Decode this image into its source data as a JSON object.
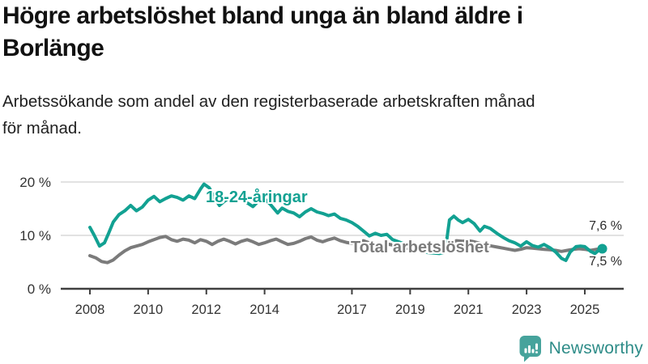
{
  "header": {
    "title_line1": "Högre arbetslöshet bland unga än bland äldre i",
    "title_line2": "Borlänge",
    "subtitle_line1": "Arbetssökande som andel av den registerbaserade arbetskraften månad",
    "subtitle_line2": "för månad."
  },
  "colors": {
    "accent_teal": "#12a192",
    "line_gray": "#7b7b7b",
    "grid": "#d8d8d8",
    "axis": "#3f3f3f",
    "tick_text": "#333333",
    "brand_teal": "#2e8c88",
    "logo_bg": "#46a39c"
  },
  "chart_data": {
    "type": "line",
    "title": "Högre arbetslöshet bland unga än bland äldre i Borlänge",
    "subtitle": "Arbetssökande som andel av den registerbaserade arbetskraften månad för månad.",
    "xlabel": "",
    "ylabel": "",
    "ylim": [
      0,
      21.5
    ],
    "xlim": [
      2007.9,
      2025.9
    ],
    "grid": "horizontal",
    "legend_position": "inline-labels",
    "y_ticks": [
      {
        "value": 0,
        "label": "0 %"
      },
      {
        "value": 10,
        "label": "10 %"
      },
      {
        "value": 20,
        "label": "20 %"
      }
    ],
    "x_ticks": [
      {
        "value": 2008,
        "label": "2008"
      },
      {
        "value": 2010,
        "label": "2010"
      },
      {
        "value": 2012,
        "label": "2012"
      },
      {
        "value": 2014,
        "label": "2014"
      },
      {
        "value": 2017,
        "label": "2017"
      },
      {
        "value": 2019,
        "label": "2019"
      },
      {
        "value": 2021,
        "label": "2021"
      },
      {
        "value": 2023,
        "label": "2023"
      },
      {
        "value": 2025,
        "label": "2025"
      }
    ],
    "end_labels": {
      "total": "7,6 %",
      "youth": "7,5 %"
    },
    "end_values": {
      "total": 7.6,
      "youth": 7.5
    },
    "series": [
      {
        "name": "18-24-åringar",
        "color": "#12a192",
        "points": [
          [
            2008.0,
            11.5
          ],
          [
            2008.15,
            10.0
          ],
          [
            2008.33,
            8.0
          ],
          [
            2008.5,
            8.6
          ],
          [
            2008.65,
            10.5
          ],
          [
            2008.8,
            12.5
          ],
          [
            2009.0,
            13.9
          ],
          [
            2009.2,
            14.6
          ],
          [
            2009.4,
            15.6
          ],
          [
            2009.6,
            14.6
          ],
          [
            2009.8,
            15.3
          ],
          [
            2010.0,
            16.6
          ],
          [
            2010.2,
            17.3
          ],
          [
            2010.4,
            16.3
          ],
          [
            2010.6,
            16.9
          ],
          [
            2010.8,
            17.4
          ],
          [
            2011.0,
            17.1
          ],
          [
            2011.2,
            16.6
          ],
          [
            2011.4,
            17.4
          ],
          [
            2011.6,
            16.9
          ],
          [
            2011.8,
            18.7
          ],
          [
            2011.92,
            19.6
          ],
          [
            2012.1,
            18.9
          ],
          [
            2012.3,
            16.9
          ],
          [
            2012.45,
            15.6
          ],
          [
            2012.6,
            16.3
          ],
          [
            2012.8,
            17.1
          ],
          [
            2013.0,
            16.3
          ],
          [
            2013.2,
            17.2
          ],
          [
            2013.4,
            16.1
          ],
          [
            2013.6,
            15.4
          ],
          [
            2013.8,
            16.5
          ],
          [
            2014.0,
            16.9
          ],
          [
            2014.2,
            15.8
          ],
          [
            2014.45,
            14.2
          ],
          [
            2014.6,
            15.1
          ],
          [
            2014.8,
            14.5
          ],
          [
            2015.0,
            14.2
          ],
          [
            2015.2,
            13.5
          ],
          [
            2015.4,
            14.4
          ],
          [
            2015.6,
            15.0
          ],
          [
            2015.8,
            14.4
          ],
          [
            2016.0,
            14.1
          ],
          [
            2016.2,
            13.7
          ],
          [
            2016.4,
            14.0
          ],
          [
            2016.6,
            13.2
          ],
          [
            2016.8,
            12.9
          ],
          [
            2017.0,
            12.4
          ],
          [
            2017.2,
            11.7
          ],
          [
            2017.4,
            10.8
          ],
          [
            2017.6,
            9.9
          ],
          [
            2017.8,
            10.4
          ],
          [
            2018.0,
            10.0
          ],
          [
            2018.2,
            10.2
          ],
          [
            2018.4,
            9.2
          ],
          [
            2018.6,
            8.8
          ],
          [
            2018.8,
            8.4
          ],
          [
            2019.0,
            7.9
          ],
          [
            2019.2,
            7.4
          ],
          [
            2019.4,
            7.0
          ],
          [
            2019.6,
            6.8
          ],
          [
            2019.8,
            6.7
          ],
          [
            2020.0,
            6.6
          ],
          [
            2020.2,
            6.9
          ],
          [
            2020.35,
            12.9
          ],
          [
            2020.5,
            13.6
          ],
          [
            2020.65,
            12.9
          ],
          [
            2020.8,
            12.4
          ],
          [
            2021.0,
            13.0
          ],
          [
            2021.2,
            12.2
          ],
          [
            2021.4,
            10.8
          ],
          [
            2021.55,
            11.7
          ],
          [
            2021.75,
            11.3
          ],
          [
            2022.0,
            10.3
          ],
          [
            2022.2,
            9.6
          ],
          [
            2022.4,
            9.0
          ],
          [
            2022.6,
            8.6
          ],
          [
            2022.8,
            8.0
          ],
          [
            2023.0,
            8.8
          ],
          [
            2023.2,
            8.1
          ],
          [
            2023.4,
            7.8
          ],
          [
            2023.6,
            8.3
          ],
          [
            2023.8,
            7.7
          ],
          [
            2024.0,
            6.9
          ],
          [
            2024.2,
            5.7
          ],
          [
            2024.35,
            5.3
          ],
          [
            2024.5,
            6.9
          ],
          [
            2024.7,
            7.9
          ],
          [
            2024.85,
            8.0
          ],
          [
            2025.0,
            7.9
          ],
          [
            2025.2,
            7.0
          ],
          [
            2025.35,
            6.6
          ],
          [
            2025.5,
            7.3
          ],
          [
            2025.6,
            7.5
          ]
        ]
      },
      {
        "name": "Total arbetslöshet",
        "color": "#7b7b7b",
        "points": [
          [
            2008.0,
            6.2
          ],
          [
            2008.2,
            5.8
          ],
          [
            2008.4,
            5.1
          ],
          [
            2008.6,
            4.9
          ],
          [
            2008.8,
            5.4
          ],
          [
            2009.0,
            6.3
          ],
          [
            2009.2,
            7.1
          ],
          [
            2009.4,
            7.7
          ],
          [
            2009.6,
            8.0
          ],
          [
            2009.8,
            8.3
          ],
          [
            2010.0,
            8.8
          ],
          [
            2010.2,
            9.2
          ],
          [
            2010.4,
            9.6
          ],
          [
            2010.6,
            9.8
          ],
          [
            2010.8,
            9.2
          ],
          [
            2011.0,
            8.9
          ],
          [
            2011.2,
            9.3
          ],
          [
            2011.4,
            9.1
          ],
          [
            2011.6,
            8.6
          ],
          [
            2011.8,
            9.2
          ],
          [
            2012.0,
            8.9
          ],
          [
            2012.2,
            8.3
          ],
          [
            2012.4,
            8.9
          ],
          [
            2012.6,
            9.3
          ],
          [
            2012.8,
            8.9
          ],
          [
            2013.0,
            8.4
          ],
          [
            2013.2,
            8.9
          ],
          [
            2013.4,
            9.2
          ],
          [
            2013.6,
            8.8
          ],
          [
            2013.8,
            8.3
          ],
          [
            2014.0,
            8.6
          ],
          [
            2014.2,
            9.0
          ],
          [
            2014.4,
            9.3
          ],
          [
            2014.6,
            8.8
          ],
          [
            2014.8,
            8.3
          ],
          [
            2015.0,
            8.5
          ],
          [
            2015.2,
            8.9
          ],
          [
            2015.4,
            9.4
          ],
          [
            2015.6,
            9.7
          ],
          [
            2015.8,
            9.1
          ],
          [
            2016.0,
            8.8
          ],
          [
            2016.2,
            9.2
          ],
          [
            2016.4,
            9.5
          ],
          [
            2016.6,
            9.0
          ],
          [
            2016.8,
            8.7
          ],
          [
            2017.0,
            8.5
          ],
          [
            2017.2,
            8.8
          ],
          [
            2017.4,
            9.0
          ],
          [
            2017.6,
            8.6
          ],
          [
            2017.8,
            8.3
          ],
          [
            2018.0,
            8.0
          ],
          [
            2018.2,
            8.4
          ],
          [
            2018.4,
            8.2
          ],
          [
            2018.6,
            7.9
          ],
          [
            2018.8,
            7.7
          ],
          [
            2019.0,
            7.5
          ],
          [
            2019.2,
            7.8
          ],
          [
            2019.4,
            7.9
          ],
          [
            2019.6,
            7.7
          ],
          [
            2019.8,
            7.6
          ],
          [
            2020.0,
            7.5
          ],
          [
            2020.2,
            7.9
          ],
          [
            2020.4,
            8.8
          ],
          [
            2020.6,
            9.0
          ],
          [
            2020.8,
            8.9
          ],
          [
            2021.0,
            9.0
          ],
          [
            2021.2,
            8.8
          ],
          [
            2021.4,
            8.5
          ],
          [
            2021.6,
            8.2
          ],
          [
            2021.8,
            8.0
          ],
          [
            2022.0,
            7.8
          ],
          [
            2022.2,
            7.6
          ],
          [
            2022.4,
            7.4
          ],
          [
            2022.6,
            7.2
          ],
          [
            2022.8,
            7.4
          ],
          [
            2023.0,
            7.7
          ],
          [
            2023.2,
            7.6
          ],
          [
            2023.4,
            7.5
          ],
          [
            2023.6,
            7.4
          ],
          [
            2023.8,
            7.3
          ],
          [
            2024.0,
            7.2
          ],
          [
            2024.2,
            7.0
          ],
          [
            2024.4,
            7.2
          ],
          [
            2024.6,
            7.4
          ],
          [
            2024.8,
            7.5
          ],
          [
            2025.0,
            7.4
          ],
          [
            2025.2,
            7.2
          ],
          [
            2025.4,
            7.4
          ],
          [
            2025.6,
            7.6
          ]
        ]
      }
    ]
  },
  "footer": {
    "brand": "Newsworthy",
    "logo_icon": "bar-chart-speech-bubble"
  }
}
